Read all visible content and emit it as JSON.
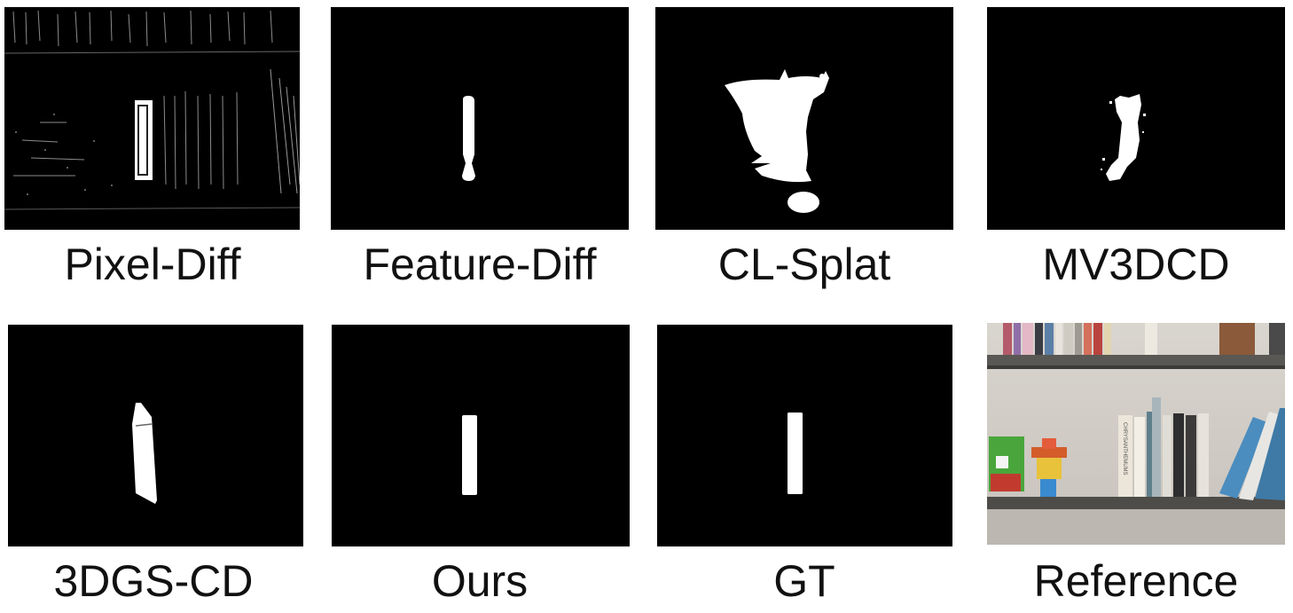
{
  "figure": {
    "panels": [
      {
        "caption": "Pixel-Diff"
      },
      {
        "caption": "Feature-Diff"
      },
      {
        "caption": "CL-Splat"
      },
      {
        "caption": "MV3DCD"
      },
      {
        "caption": "3DGS-CD"
      },
      {
        "caption": "Ours"
      },
      {
        "caption": "GT"
      },
      {
        "caption": "Reference"
      }
    ],
    "mask_foreground_color": "#ffffff",
    "mask_background_color": "#000000",
    "reference_book_spine_text": "CHRYSANTHEMUMS"
  }
}
